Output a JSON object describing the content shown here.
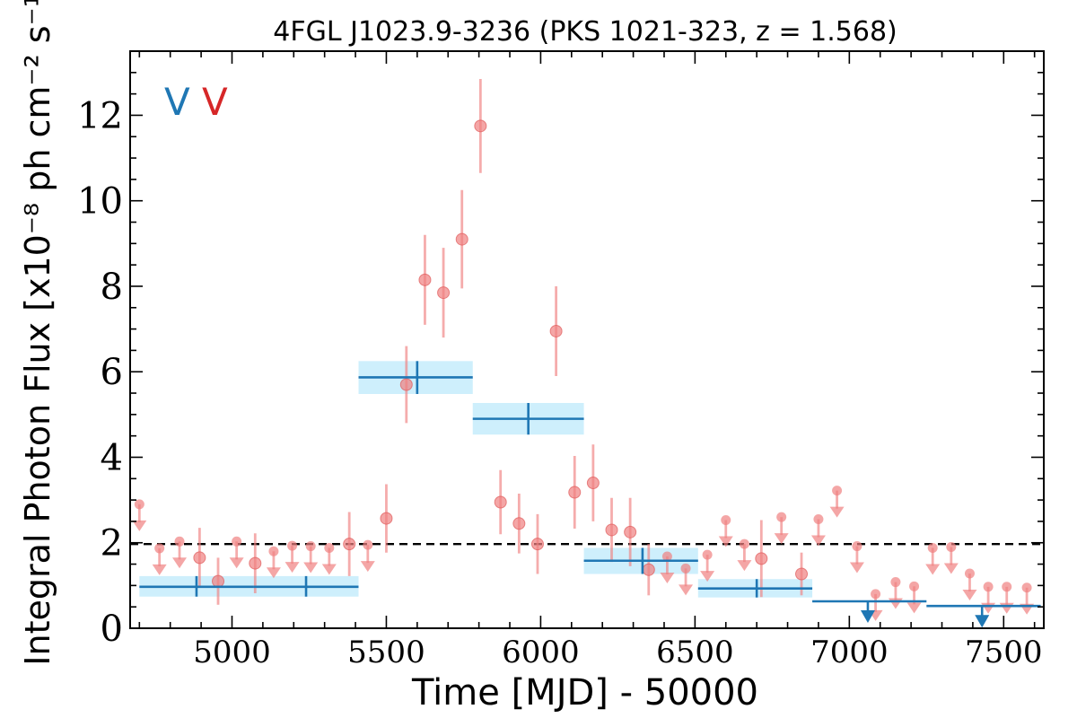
{
  "chart_data": {
    "type": "scatter",
    "title": "4FGL J1023.9-3236 (PKS 1021-323, z = 1.568)",
    "xlabel": "Time [MJD] - 50000",
    "ylabel": "Integral Photon Flux [x10⁻⁸ ph cm⁻² s⁻¹]",
    "xlim": [
      4670,
      7630
    ],
    "ylim": [
      0,
      13.5
    ],
    "x_ticks": [
      5000,
      5500,
      6000,
      6500,
      7000,
      7500
    ],
    "y_ticks": [
      0,
      2,
      4,
      6,
      8,
      10,
      12
    ],
    "x_tick_labels": [
      "5000",
      "5500",
      "6000",
      "6500",
      "7000",
      "7500"
    ],
    "y_tick_labels": [
      "0",
      "2",
      "4",
      "6",
      "8",
      "10",
      "12"
    ],
    "grid": false,
    "reference_line": {
      "y": 1.97,
      "style": "dashed",
      "color": "#000000"
    },
    "legend_markers": [
      {
        "label": "V",
        "color": "#1f77b4"
      },
      {
        "label": "V",
        "color": "#d62728"
      }
    ],
    "colors": {
      "short_bins": "#f08080",
      "long_bins": "#1f77b4",
      "long_band": "#bde9fb"
    },
    "series": [
      {
        "marker": "circle-with-errorbar",
        "points": [
          {
            "x": 5565,
            "y": 5.7,
            "yerr": 0.9
          },
          {
            "x": 5625,
            "y": 8.15,
            "yerr": 1.05
          },
          {
            "x": 5685,
            "y": 7.85,
            "yerr": 1.05
          },
          {
            "x": 5745,
            "y": 9.1,
            "yerr": 1.15
          },
          {
            "x": 5805,
            "y": 11.75,
            "yerr": 1.1
          },
          {
            "x": 5870,
            "y": 2.95,
            "yerr": 0.75
          },
          {
            "x": 5930,
            "y": 2.45,
            "yerr": 0.7
          },
          {
            "x": 5990,
            "y": 1.97,
            "yerr": 0.7
          },
          {
            "x": 6050,
            "y": 6.95,
            "yerr": 1.05
          },
          {
            "x": 6110,
            "y": 3.18,
            "yerr": 0.85
          },
          {
            "x": 6170,
            "y": 3.4,
            "yerr": 0.9
          },
          {
            "x": 6230,
            "y": 2.3,
            "yerr": 0.75
          },
          {
            "x": 6290,
            "y": 2.25,
            "yerr": 0.8
          },
          {
            "x": 6350,
            "y": 1.37,
            "yerr": 0.6
          },
          {
            "x": 6715,
            "y": 1.63,
            "yerr": 0.9
          },
          {
            "x": 6845,
            "y": 1.27,
            "yerr": 0.5
          },
          {
            "x": 4895,
            "y": 1.65,
            "yerr": 0.7
          },
          {
            "x": 4955,
            "y": 1.1,
            "yerr": 0.55
          },
          {
            "x": 5075,
            "y": 1.52,
            "yerr": 0.7
          },
          {
            "x": 5380,
            "y": 1.97,
            "yerr": 0.75
          },
          {
            "x": 5500,
            "y": 2.57,
            "yerr": 0.8
          }
        ]
      },
      {
        "marker": "upper-limit",
        "points": [
          {
            "x": 4700,
            "y": 2.9
          },
          {
            "x": 4765,
            "y": 1.87
          },
          {
            "x": 4830,
            "y": 2.03
          },
          {
            "x": 5015,
            "y": 2.03
          },
          {
            "x": 5135,
            "y": 1.8
          },
          {
            "x": 5195,
            "y": 1.93
          },
          {
            "x": 5255,
            "y": 1.92
          },
          {
            "x": 5315,
            "y": 1.88
          },
          {
            "x": 5440,
            "y": 1.95
          },
          {
            "x": 6410,
            "y": 1.68
          },
          {
            "x": 6470,
            "y": 1.4
          },
          {
            "x": 6540,
            "y": 1.72
          },
          {
            "x": 6600,
            "y": 2.53
          },
          {
            "x": 6660,
            "y": 1.97
          },
          {
            "x": 6780,
            "y": 2.6
          },
          {
            "x": 6900,
            "y": 2.55
          },
          {
            "x": 6960,
            "y": 3.22
          },
          {
            "x": 7025,
            "y": 1.92
          },
          {
            "x": 7085,
            "y": 0.8
          },
          {
            "x": 7150,
            "y": 1.08
          },
          {
            "x": 7210,
            "y": 0.98
          },
          {
            "x": 7270,
            "y": 1.88
          },
          {
            "x": 7330,
            "y": 1.9
          },
          {
            "x": 7390,
            "y": 1.28
          },
          {
            "x": 7450,
            "y": 0.97
          },
          {
            "x": 7510,
            "y": 0.97
          },
          {
            "x": 7575,
            "y": 0.95
          }
        ]
      },
      {
        "marker": "long-bin",
        "bins": [
          {
            "x0": 4700,
            "x1": 5070,
            "xc": 4885,
            "y": 0.97,
            "ylo": 0.74,
            "yhi": 1.22
          },
          {
            "x0": 5070,
            "x1": 5410,
            "xc": 5240,
            "y": 0.97,
            "ylo": 0.74,
            "yhi": 1.22
          },
          {
            "x0": 5410,
            "x1": 5780,
            "xc": 5600,
            "y": 5.87,
            "ylo": 5.48,
            "yhi": 6.25
          },
          {
            "x0": 5780,
            "x1": 6140,
            "xc": 5960,
            "y": 4.9,
            "ylo": 4.53,
            "yhi": 5.27
          },
          {
            "x0": 6140,
            "x1": 6510,
            "xc": 6330,
            "y": 1.58,
            "ylo": 1.27,
            "yhi": 1.88
          },
          {
            "x0": 6510,
            "x1": 6880,
            "xc": 6700,
            "y": 0.93,
            "ylo": 0.72,
            "yhi": 1.15
          },
          {
            "x0": 6880,
            "x1": 7250,
            "xc": 7060,
            "y": 0.63,
            "upper_limit": true
          },
          {
            "x0": 7250,
            "x1": 7620,
            "xc": 7430,
            "y": 0.52,
            "upper_limit": true
          }
        ]
      }
    ]
  }
}
